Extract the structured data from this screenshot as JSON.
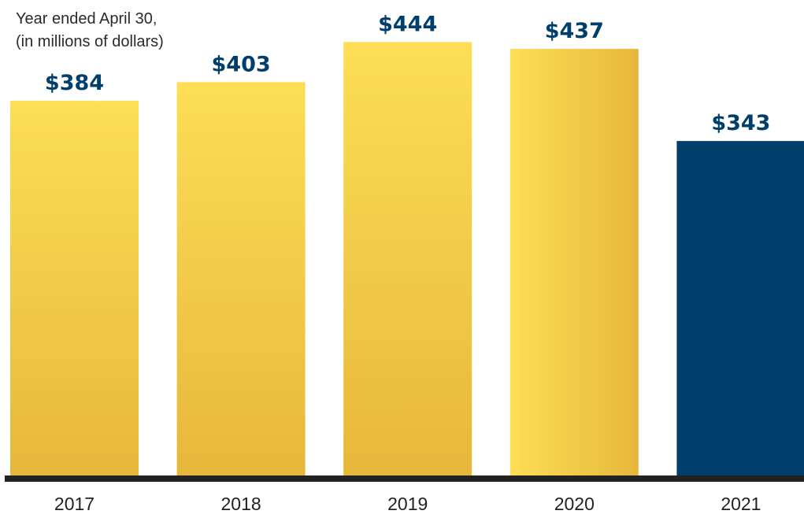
{
  "chart_data": {
    "type": "bar",
    "subtitle_lines": [
      "Year ended April 30,",
      "(in millions of dollars)"
    ],
    "categories": [
      "2017",
      "2018",
      "2019",
      "2020",
      "2021"
    ],
    "values": [
      384,
      403,
      444,
      437,
      343
    ],
    "value_labels": [
      "$384",
      "$403",
      "$444",
      "$437",
      "$343"
    ],
    "ylim": [
      0,
      480
    ],
    "grid": false,
    "legend": "none",
    "highlight_index": 4
  },
  "colors": {
    "bar_light": "#FDDE55",
    "bar_dark": "#E6B73A",
    "highlight_bar": "#003F6C",
    "value_label": "#003F6C",
    "baseline": "#222222"
  }
}
